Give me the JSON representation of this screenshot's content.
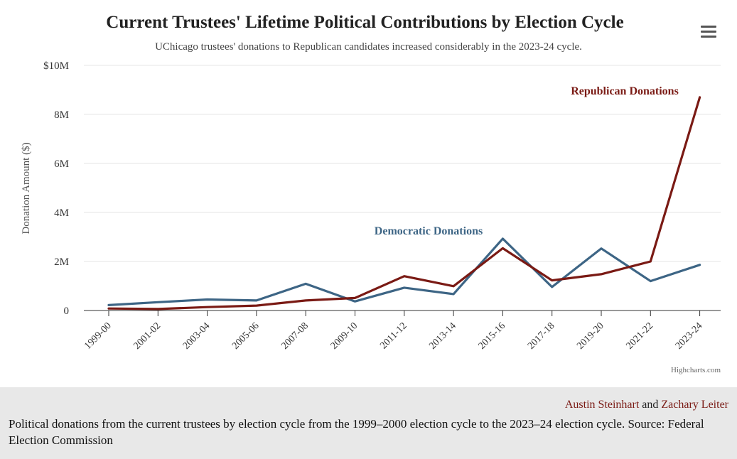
{
  "chart_data": {
    "type": "line",
    "title": "Current Trustees' Lifetime Political Contributions by Election Cycle",
    "subtitle": "UChicago trustees' donations to Republican candidates increased considerably in the 2023-24 cycle.",
    "xlabel": "",
    "ylabel": "Donation Amount ($)",
    "ylim": [
      0,
      10000000
    ],
    "yticks": [
      0,
      2000000,
      4000000,
      6000000,
      8000000,
      10000000
    ],
    "ytick_labels": [
      "0",
      "2M",
      "4M",
      "6M",
      "8M",
      "$10M"
    ],
    "grid": true,
    "legend": "none (inline series labels)",
    "categories": [
      "1999-00",
      "2001-02",
      "2003-04",
      "2005-06",
      "2007-08",
      "2009-10",
      "2011-12",
      "2013-14",
      "2015-16",
      "2017-18",
      "2019-20",
      "2021-22",
      "2023-24"
    ],
    "series": [
      {
        "name": "Democratic Donations",
        "color": "#3d6585",
        "values": [
          220000,
          340000,
          450000,
          410000,
          1090000,
          370000,
          930000,
          670000,
          2930000,
          960000,
          2530000,
          1200000,
          1860000
        ]
      },
      {
        "name": "Republican Donations",
        "color": "#7a1a14",
        "values": [
          80000,
          60000,
          140000,
          200000,
          410000,
          510000,
          1400000,
          990000,
          2540000,
          1230000,
          1480000,
          2000000,
          8700000
        ]
      }
    ]
  },
  "credits": "Highcharts.com",
  "menu_icon": "hamburger-menu-icon",
  "caption": {
    "author1": "Austin Steinhart",
    "connector": "and",
    "author2": "Zachary Leiter",
    "text": "Political donations from the current trustees by election cycle from the 1999–2000 election cycle to the 2023–24 election cycle. Source: Federal Election Commission"
  }
}
